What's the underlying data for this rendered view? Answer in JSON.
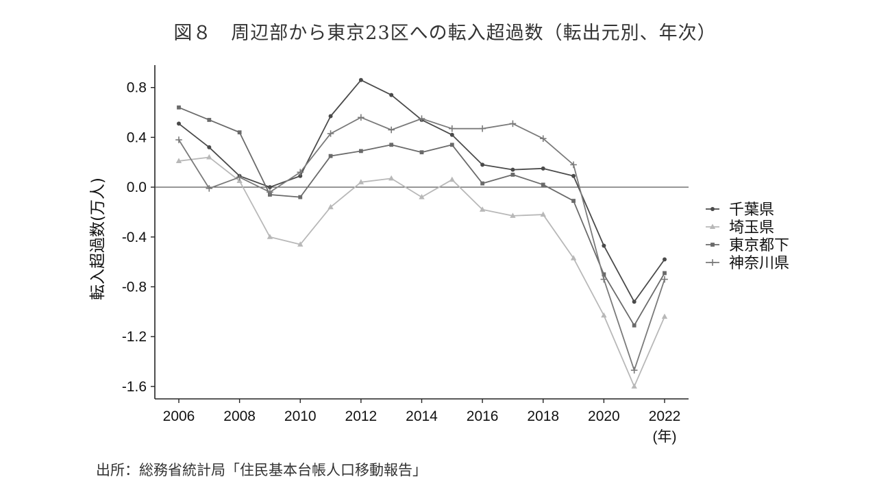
{
  "figure": {
    "title": "図８　周辺部から東京23区への転入超過数（転出元別、年次）",
    "source": "出所：総務省統計局「住民基本台帳人口移動報告」"
  },
  "chart_data": {
    "type": "line",
    "title": "図８　周辺部から東京23区への転入超過数（転出元別、年次）",
    "xlabel": "(年)",
    "ylabel": "転入超過数(万人)",
    "x": [
      2006,
      2007,
      2008,
      2009,
      2010,
      2011,
      2012,
      2013,
      2014,
      2015,
      2016,
      2017,
      2018,
      2019,
      2020,
      2021,
      2022
    ],
    "xticks": [
      "2006",
      "2008",
      "2010",
      "2012",
      "2014",
      "2016",
      "2018",
      "2020",
      "2022"
    ],
    "yticks": [
      "0.8",
      "0.4",
      "0.0",
      "-0.4",
      "-0.8",
      "-1.2",
      "-1.6"
    ],
    "xlim": [
      2006,
      2022
    ],
    "ylim": [
      -1.7,
      0.98
    ],
    "grid": false,
    "zero_line": true,
    "legend_position": "right",
    "series": [
      {
        "name": "千葉県",
        "marker": "circle",
        "color": "#4a4a4a",
        "values": [
          0.51,
          0.32,
          0.09,
          0.0,
          0.09,
          0.57,
          0.86,
          0.74,
          0.54,
          0.42,
          0.18,
          0.14,
          0.15,
          0.09,
          -0.47,
          -0.92,
          -0.58
        ]
      },
      {
        "name": "埼玉県",
        "marker": "triangle",
        "color": "#b8b8b8",
        "values": [
          0.21,
          0.24,
          0.05,
          -0.4,
          -0.46,
          -0.16,
          0.04,
          0.07,
          -0.08,
          0.06,
          -0.18,
          -0.23,
          -0.22,
          -0.57,
          -1.03,
          -1.6,
          -1.04
        ]
      },
      {
        "name": "東京都下",
        "marker": "square",
        "color": "#6a6a6a",
        "values": [
          0.64,
          0.54,
          0.44,
          -0.06,
          -0.08,
          0.25,
          0.29,
          0.34,
          0.28,
          0.34,
          0.03,
          0.1,
          0.02,
          -0.11,
          -0.7,
          -1.11,
          -0.69
        ]
      },
      {
        "name": "神奈川県",
        "marker": "plus",
        "color": "#7a7a7a",
        "values": [
          0.38,
          -0.01,
          0.08,
          -0.04,
          0.12,
          0.43,
          0.56,
          0.46,
          0.55,
          0.47,
          0.47,
          0.51,
          0.39,
          0.18,
          -0.74,
          -1.47,
          -0.74
        ]
      }
    ]
  }
}
